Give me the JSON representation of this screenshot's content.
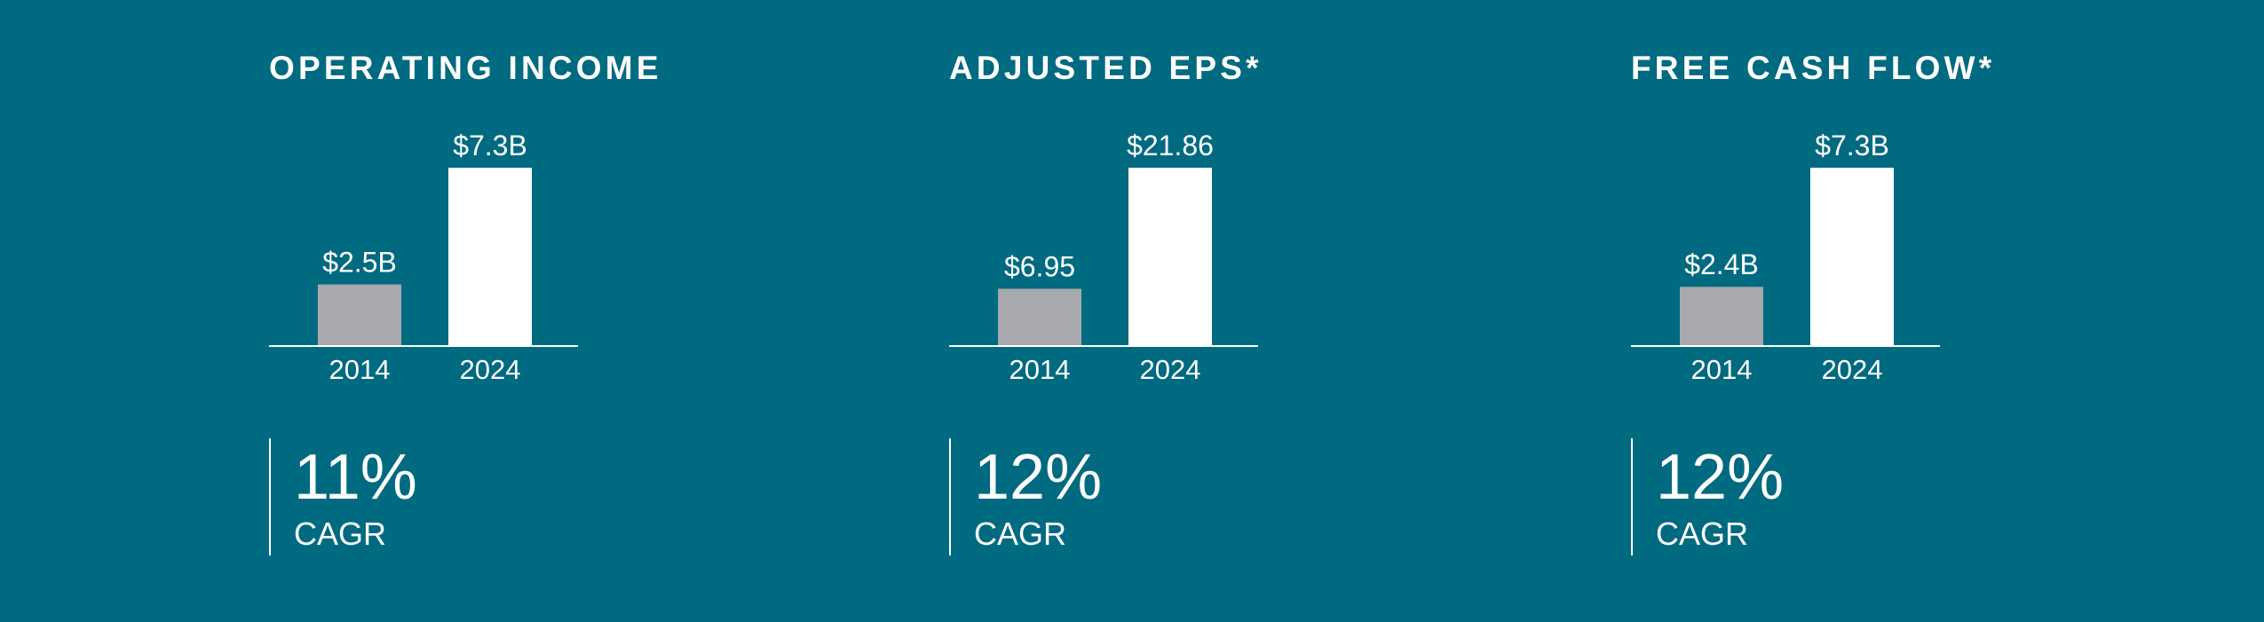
{
  "colors": {
    "background": "#006a80",
    "bar_2014": "#a7a9ac",
    "bar_2024": "#ffffff",
    "text": "#ffffff"
  },
  "panels": [
    {
      "title": "OPERATING INCOME",
      "cagr_value": "11%",
      "cagr_label": "CAGR"
    },
    {
      "title": "ADJUSTED EPS*",
      "cagr_value": "12%",
      "cagr_label": "CAGR"
    },
    {
      "title": "FREE CASH FLOW*",
      "cagr_value": "12%",
      "cagr_label": "CAGR"
    }
  ],
  "chart_data": [
    {
      "type": "bar",
      "title": "OPERATING INCOME",
      "categories": [
        "2014",
        "2024"
      ],
      "values": [
        2.5,
        7.3
      ],
      "data_labels": [
        "$2.5B",
        "$7.3B"
      ],
      "xlabel": "",
      "ylabel": "",
      "grid": false
    },
    {
      "type": "bar",
      "title": "ADJUSTED EPS*",
      "categories": [
        "2014",
        "2024"
      ],
      "values": [
        6.95,
        21.86
      ],
      "data_labels": [
        "$6.95",
        "$21.86"
      ],
      "xlabel": "",
      "ylabel": "",
      "grid": false
    },
    {
      "type": "bar",
      "title": "FREE CASH FLOW*",
      "categories": [
        "2014",
        "2024"
      ],
      "values": [
        2.4,
        7.3
      ],
      "data_labels": [
        "$2.4B",
        "$7.3B"
      ],
      "xlabel": "",
      "ylabel": "",
      "grid": false
    }
  ]
}
